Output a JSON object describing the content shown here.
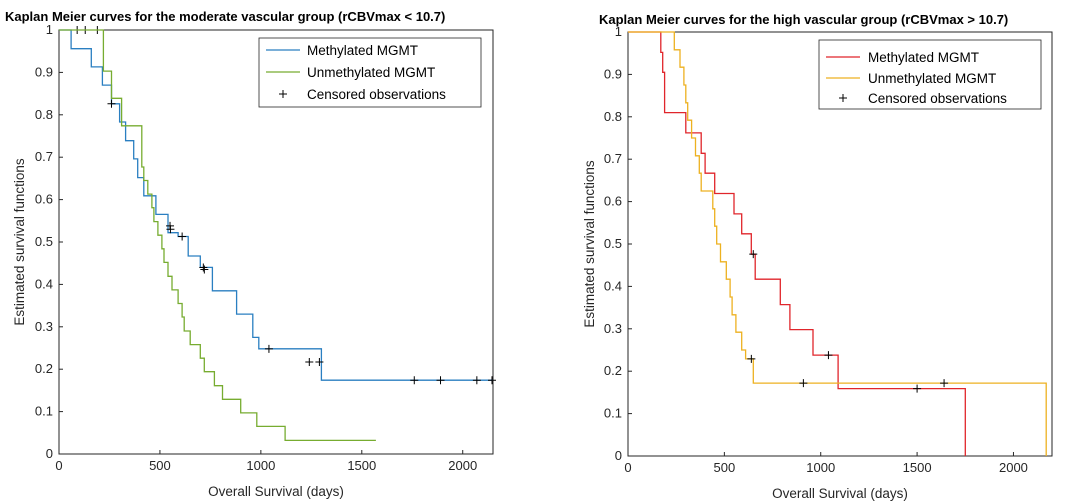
{
  "chart_data": [
    {
      "type": "line",
      "title": "Kaplan Meier curves for the moderate vascular group (rCBVmax < 10.7)",
      "xlabel": "Overall Survival (days)",
      "ylabel": "Estimated survival functions",
      "xlim": [
        0,
        2150
      ],
      "ylim": [
        0,
        1
      ],
      "xticks": [
        0,
        500,
        1000,
        1500,
        2000
      ],
      "yticks": [
        0,
        0.1,
        0.2,
        0.3,
        0.4,
        0.5,
        0.6,
        0.7,
        0.8,
        0.9,
        1
      ],
      "grid": false,
      "legend_position": "top-right",
      "legend": [
        "Methylated MGMT",
        "Unmethylated MGMT",
        "Censored observations"
      ],
      "series": [
        {
          "name": "Methylated MGMT",
          "color": "#2a7fc1",
          "steps": [
            [
              0,
              1
            ],
            [
              60,
              0.956
            ],
            [
              160,
              0.913
            ],
            [
              215,
              0.87
            ],
            [
              260,
              0.826
            ],
            [
              300,
              0.783
            ],
            [
              330,
              0.739
            ],
            [
              370,
              0.696
            ],
            [
              390,
              0.652
            ],
            [
              420,
              0.609
            ],
            [
              480,
              0.565
            ],
            [
              540,
              0.522
            ],
            [
              590,
              0.513
            ],
            [
              640,
              0.467
            ],
            [
              700,
              0.44
            ],
            [
              760,
              0.385
            ],
            [
              880,
              0.33
            ],
            [
              960,
              0.275
            ],
            [
              990,
              0.248
            ],
            [
              1300,
              0.174
            ],
            [
              2150,
              0.174
            ]
          ],
          "censored": [
            [
              90,
              1
            ],
            [
              130,
              1
            ],
            [
              190,
              1
            ],
            [
              260,
              0.826
            ],
            [
              550,
              0.538
            ],
            [
              552,
              0.53
            ],
            [
              610,
              0.513
            ],
            [
              715,
              0.44
            ],
            [
              720,
              0.435
            ],
            [
              1040,
              0.248
            ],
            [
              1240,
              0.217
            ],
            [
              1290,
              0.217
            ],
            [
              1760,
              0.174
            ],
            [
              1890,
              0.174
            ],
            [
              2070,
              0.174
            ],
            [
              2145,
              0.174
            ]
          ]
        },
        {
          "name": "Unmethylated MGMT",
          "color": "#77ac30",
          "steps": [
            [
              0,
              1
            ],
            [
              220,
              0.903
            ],
            [
              260,
              0.839
            ],
            [
              310,
              0.774
            ],
            [
              410,
              0.677
            ],
            [
              420,
              0.645
            ],
            [
              440,
              0.613
            ],
            [
              460,
              0.581
            ],
            [
              470,
              0.548
            ],
            [
              490,
              0.516
            ],
            [
              510,
              0.484
            ],
            [
              520,
              0.452
            ],
            [
              540,
              0.419
            ],
            [
              560,
              0.387
            ],
            [
              590,
              0.355
            ],
            [
              610,
              0.323
            ],
            [
              620,
              0.29
            ],
            [
              650,
              0.258
            ],
            [
              700,
              0.226
            ],
            [
              720,
              0.194
            ],
            [
              770,
              0.161
            ],
            [
              810,
              0.129
            ],
            [
              900,
              0.097
            ],
            [
              980,
              0.065
            ],
            [
              1120,
              0.032
            ],
            [
              1570,
              0.032
            ]
          ],
          "censored": []
        }
      ]
    },
    {
      "type": "line",
      "title": "Kaplan Meier curves for the high vascular group (rCBVmax > 10.7)",
      "xlabel": "Overall Survival (days)",
      "ylabel": "Estimated survival functions",
      "xlim": [
        0,
        2200
      ],
      "ylim": [
        0,
        1
      ],
      "xticks": [
        0,
        500,
        1000,
        1500,
        2000
      ],
      "yticks": [
        0,
        0.1,
        0.2,
        0.3,
        0.4,
        0.5,
        0.6,
        0.7,
        0.8,
        0.9,
        1
      ],
      "grid": false,
      "legend_position": "top-right",
      "legend": [
        "Methylated MGMT",
        "Unmethylated MGMT",
        "Censored observations"
      ],
      "series": [
        {
          "name": "Methylated MGMT",
          "color": "#e0252b",
          "steps": [
            [
              0,
              1
            ],
            [
              170,
              0.952
            ],
            [
              180,
              0.905
            ],
            [
              190,
              0.81
            ],
            [
              300,
              0.762
            ],
            [
              380,
              0.714
            ],
            [
              400,
              0.667
            ],
            [
              450,
              0.619
            ],
            [
              550,
              0.571
            ],
            [
              590,
              0.524
            ],
            [
              640,
              0.476
            ],
            [
              660,
              0.417
            ],
            [
              790,
              0.357
            ],
            [
              840,
              0.298
            ],
            [
              960,
              0.238
            ],
            [
              1090,
              0.159
            ],
            [
              1750,
              0.0
            ],
            [
              1750,
              0.0
            ]
          ],
          "censored": [
            [
              650,
              0.476
            ],
            [
              1040,
              0.238
            ],
            [
              1500,
              0.159
            ]
          ]
        },
        {
          "name": "Unmethylated MGMT",
          "color": "#edb120",
          "steps": [
            [
              0,
              1
            ],
            [
              240,
              0.958
            ],
            [
              270,
              0.917
            ],
            [
              290,
              0.875
            ],
            [
              300,
              0.833
            ],
            [
              310,
              0.792
            ],
            [
              330,
              0.75
            ],
            [
              350,
              0.708
            ],
            [
              370,
              0.667
            ],
            [
              380,
              0.625
            ],
            [
              440,
              0.583
            ],
            [
              450,
              0.542
            ],
            [
              460,
              0.5
            ],
            [
              480,
              0.458
            ],
            [
              510,
              0.417
            ],
            [
              530,
              0.375
            ],
            [
              540,
              0.333
            ],
            [
              560,
              0.292
            ],
            [
              590,
              0.25
            ],
            [
              610,
              0.229
            ],
            [
              650,
              0.172
            ],
            [
              2170,
              0.172
            ],
            [
              2170,
              0.0
            ]
          ],
          "censored": [
            [
              640,
              0.229
            ],
            [
              910,
              0.172
            ],
            [
              1640,
              0.172
            ]
          ]
        }
      ]
    }
  ]
}
